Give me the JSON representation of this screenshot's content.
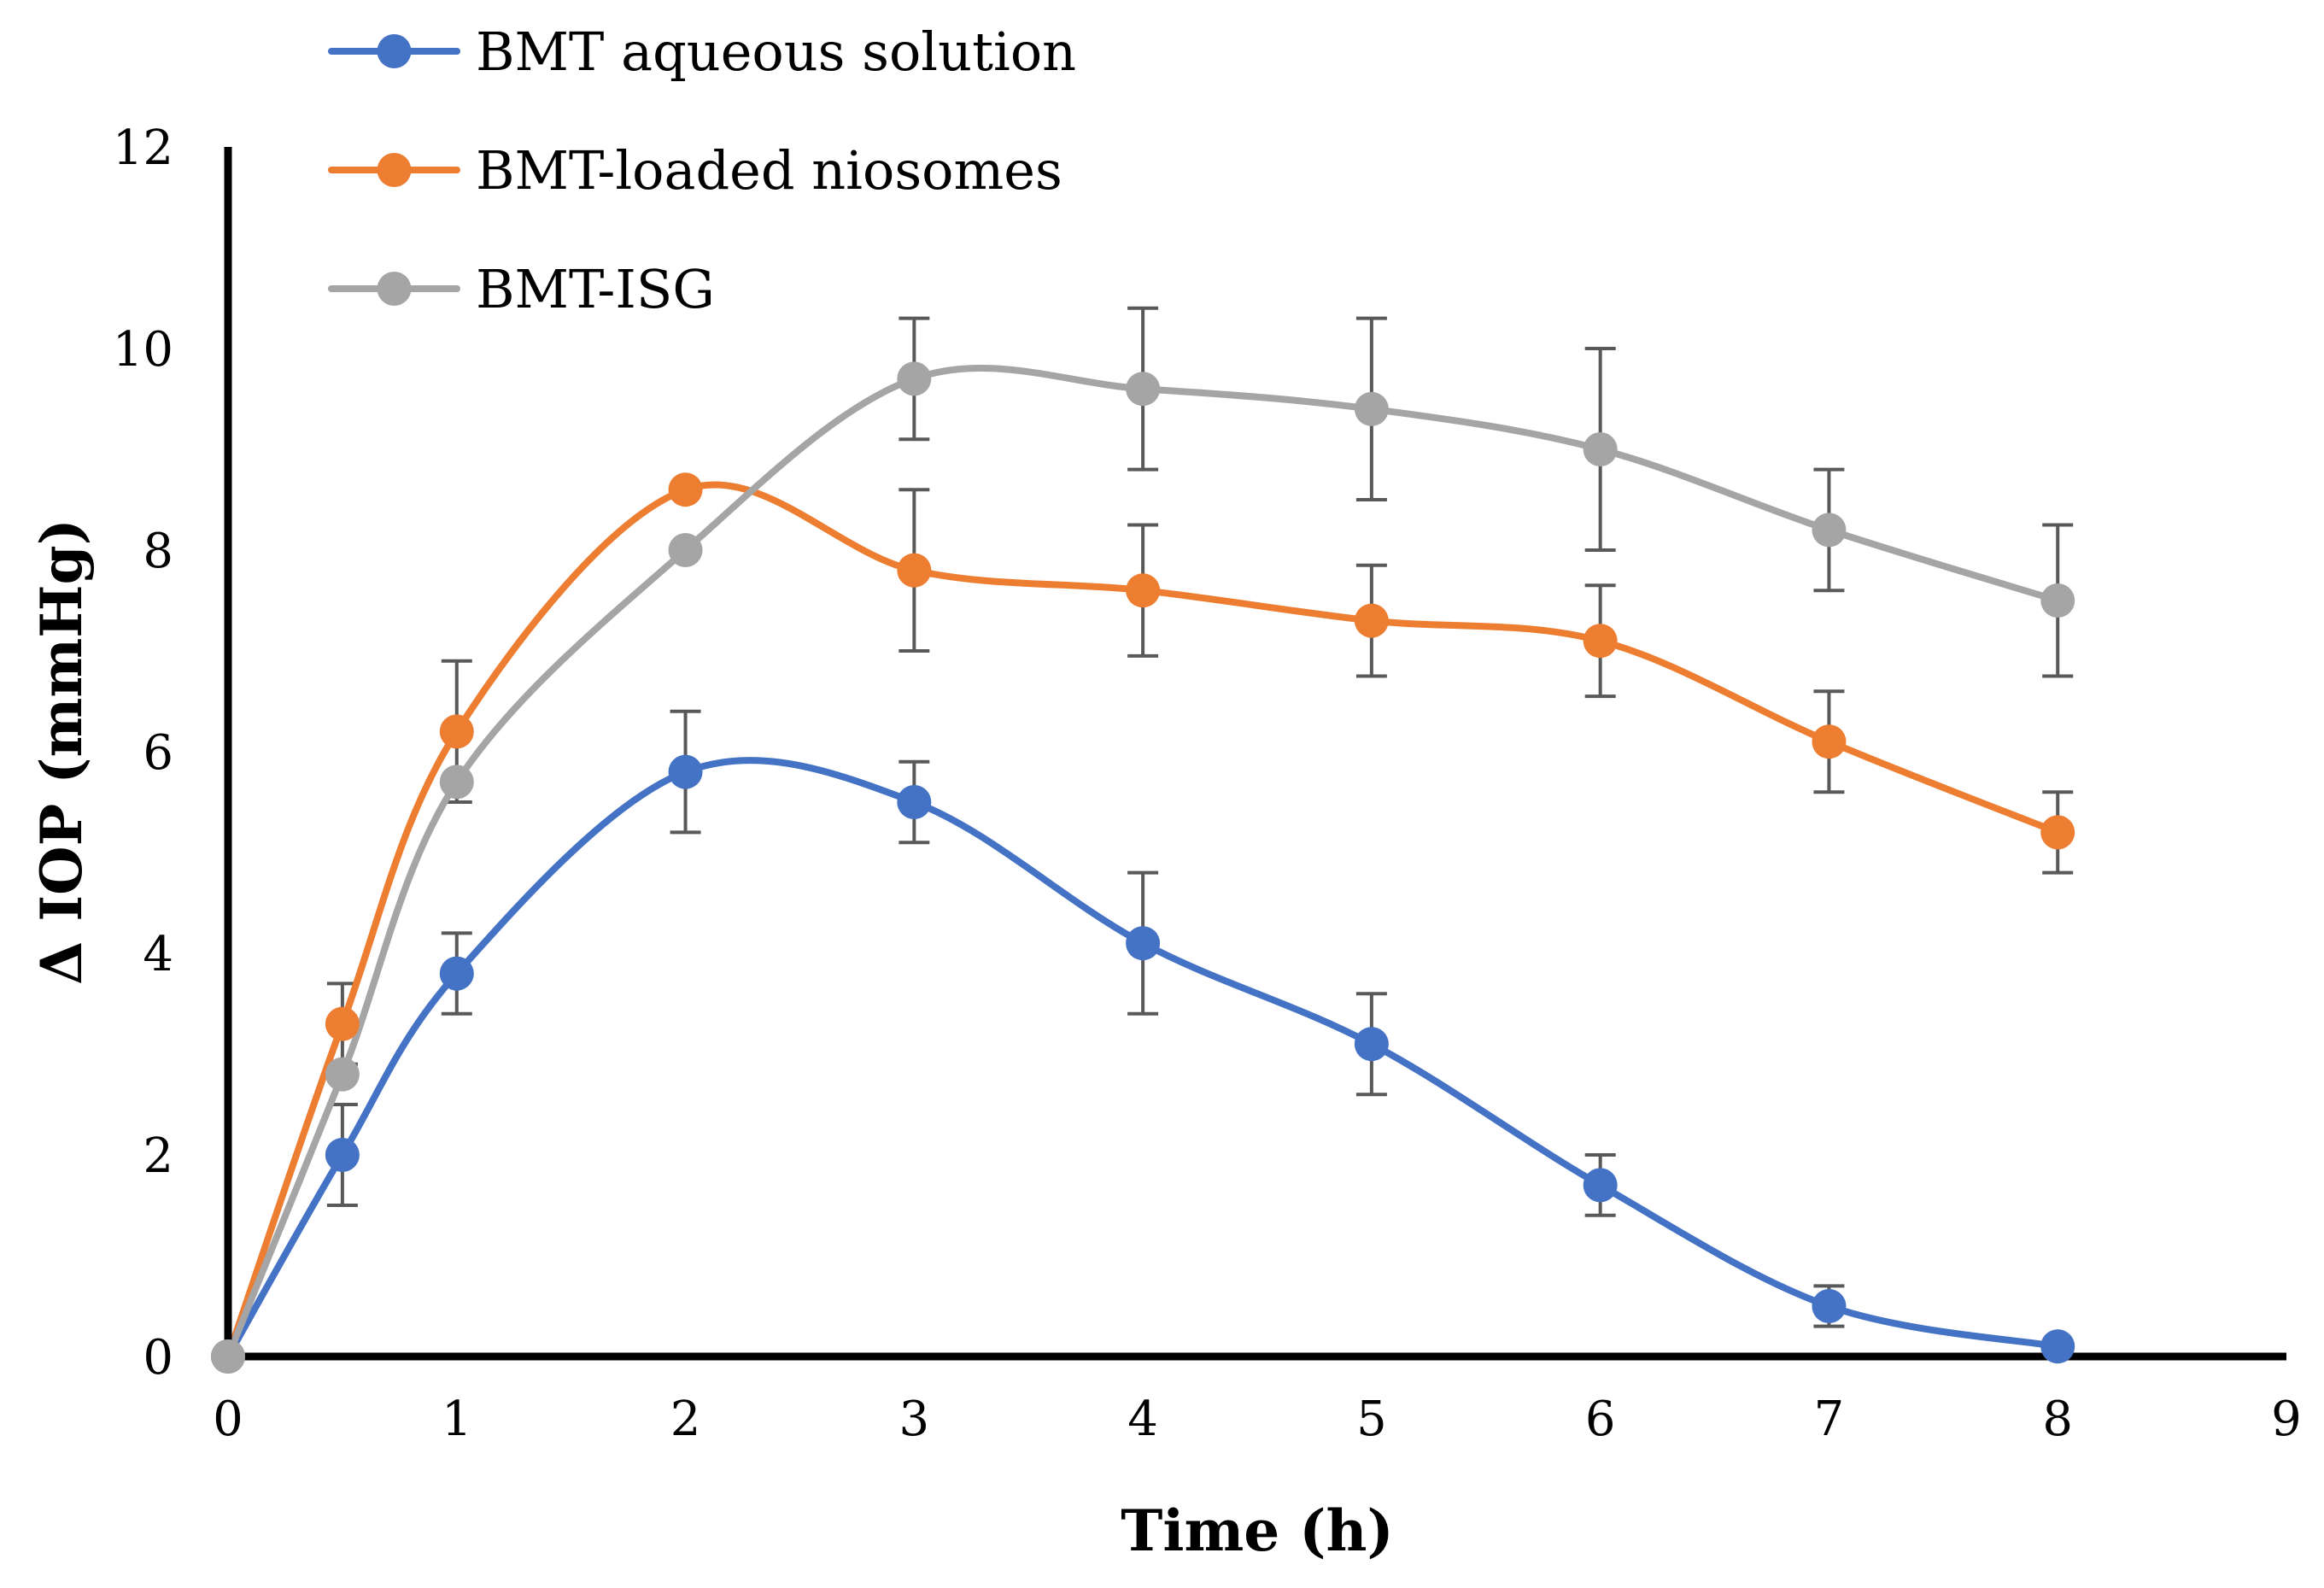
{
  "chart_data": {
    "type": "line",
    "title": "",
    "xlabel": "Time (h)",
    "ylabel": "Δ IOP (mmHg)",
    "xlim": [
      0,
      9
    ],
    "ylim": [
      0,
      12
    ],
    "x_ticks": [
      0,
      1,
      2,
      3,
      4,
      5,
      6,
      7,
      8,
      9
    ],
    "y_ticks": [
      0,
      2,
      4,
      6,
      8,
      10,
      12
    ],
    "grid": false,
    "legend_position": "top-left",
    "smooth": true,
    "error_bar_color": "#595959",
    "series": [
      {
        "name": "BMT aqueous solution",
        "color": "#4472C4",
        "x": [
          0,
          0.5,
          1,
          2,
          3,
          4,
          5,
          6,
          7,
          8
        ],
        "y": [
          0,
          2.0,
          3.8,
          5.8,
          5.5,
          4.1,
          3.1,
          1.7,
          0.5,
          0.1
        ],
        "error": [
          0,
          0.5,
          0.4,
          0.6,
          0.4,
          0.7,
          0.5,
          0.3,
          0.2,
          0.0
        ]
      },
      {
        "name": "BMT-loaded niosomes",
        "color": "#ED7D31",
        "x": [
          0,
          0.5,
          1,
          2,
          3,
          4,
          5,
          6,
          7,
          8
        ],
        "y": [
          0,
          3.3,
          6.2,
          8.6,
          7.8,
          7.6,
          7.3,
          7.1,
          6.1,
          5.2
        ],
        "error": [
          0,
          0.4,
          0.7,
          0.0,
          0.8,
          0.65,
          0.55,
          0.55,
          0.5,
          0.4
        ]
      },
      {
        "name": "BMT-ISG",
        "color": "#A5A5A5",
        "x": [
          0,
          0.5,
          1,
          2,
          3,
          4,
          5,
          6,
          7,
          8
        ],
        "y": [
          0,
          2.8,
          5.7,
          8.0,
          9.7,
          9.6,
          9.4,
          9.0,
          8.2,
          7.5
        ],
        "error": [
          0,
          0.0,
          0.0,
          0.0,
          0.6,
          0.8,
          0.9,
          1.0,
          0.6,
          0.75
        ]
      }
    ]
  }
}
